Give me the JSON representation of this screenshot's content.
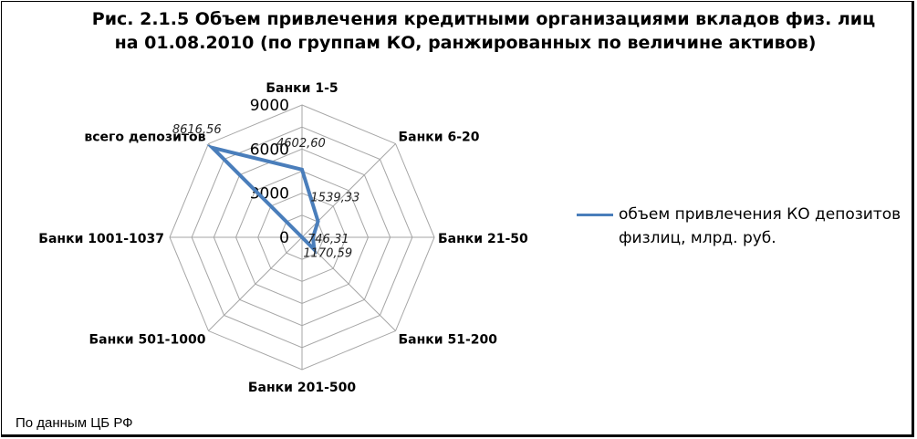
{
  "title_line1": "Рис. 2.1.5 Объем привлечения кредитными организациями вкладов физ. лиц",
  "title_line2": "на 01.08.2010 (по группам КО, ранжированных по величине активов)",
  "source": "По данным ЦБ РФ",
  "colors": {
    "series": "#4a7ebb",
    "grid": "#a6a6a6"
  },
  "chart_data": {
    "type": "radar",
    "title": "Рис. 2.1.5 Объем привлечения кредитными организациями вкладов физ. лиц на 01.08.2010 (по группам КО, ранжированных по величине активов)",
    "categories": [
      "Банки 1-5",
      "Банки 6-20",
      "Банки 21-50",
      "Банки 51-200",
      "Банки 201-500",
      "Банки 501-1000",
      "Банки 1001-1037",
      "всего депозитов"
    ],
    "series": [
      {
        "name": "объем привлечения КО депозитов физлиц, млрд. руб.",
        "values": [
          4602.6,
          1539.33,
          746.31,
          1170.59,
          0,
          0,
          0,
          8616.56
        ]
      }
    ],
    "data_labels": [
      "4602,60",
      "1539,33",
      "746,31",
      "1170,59",
      "",
      "",
      "",
      "8616,56"
    ],
    "axis_ticks": [
      "0",
      "3000",
      "6000",
      "9000"
    ],
    "ylim": [
      0,
      9000
    ],
    "legend_position": "right",
    "grid": true
  }
}
